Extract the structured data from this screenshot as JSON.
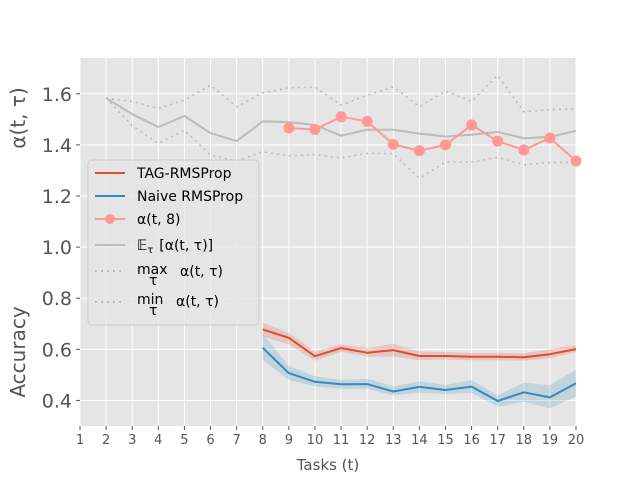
{
  "chart_data": {
    "type": "line",
    "style": "ggplot",
    "x": [
      1,
      2,
      3,
      4,
      5,
      6,
      7,
      8,
      9,
      10,
      11,
      12,
      13,
      14,
      15,
      16,
      17,
      18,
      19,
      20
    ],
    "xlim": [
      1,
      20
    ],
    "ylim": [
      0.3,
      1.74
    ],
    "xlabel": "Tasks (t)",
    "ylabel_top": "α(t, τ)",
    "ylabel_bottom": "Accuracy",
    "x_ticks": [
      "1",
      "2",
      "3",
      "4",
      "5",
      "6",
      "7",
      "8",
      "9",
      "10",
      "11",
      "12",
      "13",
      "14",
      "15",
      "16",
      "17",
      "18",
      "19",
      "20"
    ],
    "y_ticks": [
      0.4,
      0.6,
      0.8,
      1.0,
      1.2,
      1.4,
      1.6
    ],
    "y_tick_labels": [
      "0.4",
      "0.6",
      "0.8",
      "1.0",
      "1.2",
      "1.4",
      "1.6"
    ],
    "legend_position": "center-left",
    "colors": {
      "tag": "#E24A33",
      "naive": "#348ABD",
      "alpha8": "#FF9896",
      "expect": "#BBBBBB",
      "dotted": "#BBBBBB",
      "background": "#E5E5E5",
      "grid": "#FFFFFF"
    },
    "legend": [
      {
        "label": "TAG-RMSProp",
        "style": "line",
        "color": "#E24A33"
      },
      {
        "label": "Naive RMSProp",
        "style": "line",
        "color": "#348ABD"
      },
      {
        "label": "α(t, 8)",
        "style": "line-marker",
        "color": "#FF9896"
      },
      {
        "label": "𝔼",
        "sub": "τ",
        "rest": "[α(t, τ)]",
        "style": "line",
        "color": "#BBBBBB"
      },
      {
        "label": "max",
        "sub": "τ",
        "rest": "α(t, τ)",
        "style": "dotted",
        "color": "#BBBBBB"
      },
      {
        "label": "min",
        "sub": "τ",
        "rest": "α(t, τ)",
        "style": "dotted",
        "color": "#BBBBBB"
      }
    ],
    "series": [
      {
        "name": "TAG-RMSProp",
        "key": "tag",
        "x": [
          8,
          9,
          10,
          11,
          12,
          13,
          14,
          15,
          16,
          17,
          18,
          19,
          20
        ],
        "values": [
          0.678,
          0.645,
          0.573,
          0.605,
          0.587,
          0.597,
          0.574,
          0.574,
          0.571,
          0.571,
          0.569,
          0.581,
          0.601
        ],
        "band_low": [
          0.65,
          0.62,
          0.555,
          0.59,
          0.572,
          0.572,
          0.558,
          0.56,
          0.557,
          0.557,
          0.555,
          0.565,
          0.588
        ],
        "band_high": [
          0.705,
          0.665,
          0.592,
          0.62,
          0.605,
          0.622,
          0.592,
          0.59,
          0.586,
          0.586,
          0.585,
          0.6,
          0.617
        ]
      },
      {
        "name": "Naive RMSProp",
        "key": "naive",
        "x": [
          8,
          9,
          10,
          11,
          12,
          13,
          14,
          15,
          16,
          17,
          18,
          19,
          20
        ],
        "values": [
          0.606,
          0.507,
          0.473,
          0.463,
          0.464,
          0.435,
          0.453,
          0.441,
          0.454,
          0.398,
          0.432,
          0.412,
          0.467
        ],
        "band_low": [
          0.56,
          0.48,
          0.455,
          0.445,
          0.445,
          0.42,
          0.43,
          0.425,
          0.43,
          0.375,
          0.395,
          0.37,
          0.415
        ],
        "band_high": [
          0.66,
          0.535,
          0.495,
          0.48,
          0.485,
          0.455,
          0.475,
          0.46,
          0.48,
          0.42,
          0.47,
          0.46,
          0.52
        ]
      },
      {
        "name": "α(t, 8)",
        "key": "alpha8",
        "x": [
          9,
          10,
          11,
          12,
          13,
          14,
          15,
          16,
          17,
          18,
          19,
          20
        ],
        "values": [
          1.466,
          1.46,
          1.51,
          1.492,
          1.402,
          1.377,
          1.4,
          1.478,
          1.415,
          1.38,
          1.427,
          1.337
        ]
      },
      {
        "name": "𝔼τ [α(t, τ)]",
        "key": "expect",
        "x": [
          2,
          3,
          4,
          5,
          6,
          7,
          8,
          9,
          10,
          11,
          12,
          13,
          14,
          15,
          16,
          17,
          18,
          19,
          20
        ],
        "values": [
          1.583,
          1.52,
          1.47,
          1.513,
          1.446,
          1.415,
          1.492,
          1.489,
          1.478,
          1.436,
          1.46,
          1.459,
          1.444,
          1.433,
          1.44,
          1.451,
          1.426,
          1.431,
          1.455
        ]
      },
      {
        "name": "maxτ α(t, τ)",
        "key": "max",
        "x": [
          2,
          3,
          4,
          5,
          6,
          7,
          8,
          9,
          10,
          11,
          12,
          13,
          14,
          15,
          16,
          17,
          18,
          19,
          20
        ],
        "values": [
          1.583,
          1.57,
          1.542,
          1.575,
          1.634,
          1.549,
          1.604,
          1.623,
          1.626,
          1.556,
          1.594,
          1.627,
          1.55,
          1.61,
          1.57,
          1.672,
          1.53,
          1.538,
          1.541
        ]
      },
      {
        "name": "minτ α(t, τ)",
        "key": "min",
        "x": [
          2,
          3,
          4,
          5,
          6,
          7,
          8,
          9,
          10,
          11,
          12,
          13,
          14,
          15,
          16,
          17,
          18,
          19,
          20
        ],
        "values": [
          1.583,
          1.475,
          1.405,
          1.458,
          1.36,
          1.337,
          1.373,
          1.357,
          1.362,
          1.349,
          1.367,
          1.366,
          1.269,
          1.333,
          1.333,
          1.351,
          1.322,
          1.331,
          1.332
        ]
      }
    ]
  }
}
